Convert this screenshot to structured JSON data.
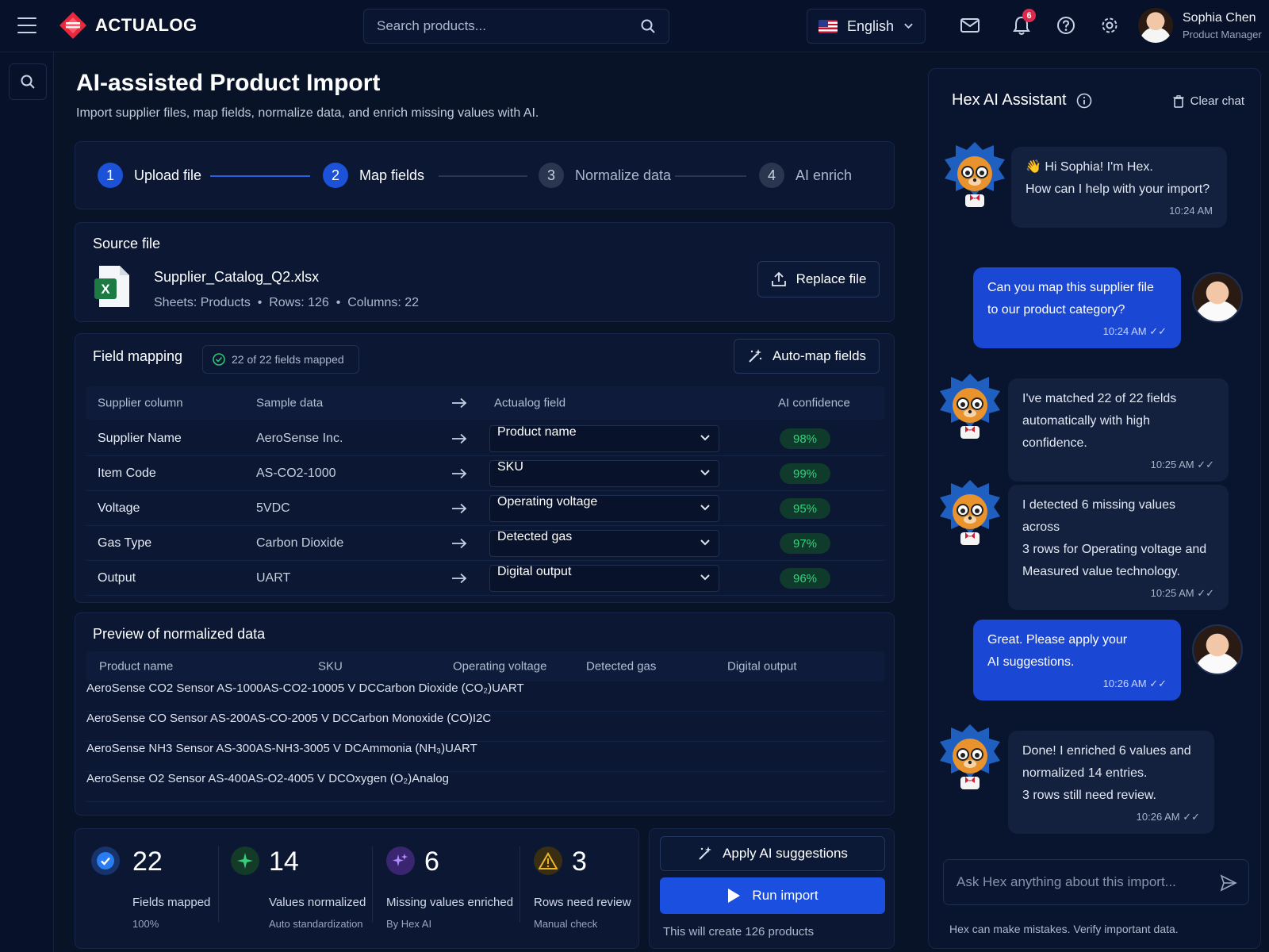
{
  "brand": {
    "name": "ACTUALOG"
  },
  "search": {
    "placeholder": "Search products..."
  },
  "language": {
    "label": "English"
  },
  "notifications": {
    "count": "6"
  },
  "user": {
    "name": "Sophia Chen",
    "role": "Product Manager"
  },
  "page": {
    "title": "AI-assisted Product Import",
    "subtitle": "Import supplier files, map fields, normalize data, and enrich missing values with AI."
  },
  "steps": [
    {
      "num": "1",
      "label": "Upload file",
      "state": "done"
    },
    {
      "num": "2",
      "label": "Map fields",
      "state": "active"
    },
    {
      "num": "3",
      "label": "Normalize data",
      "state": "idle"
    },
    {
      "num": "4",
      "label": "AI enrich",
      "state": "idle"
    }
  ],
  "source": {
    "title": "Source file",
    "file_name": "Supplier_Catalog_Q2.xlsx",
    "meta": "Sheets: Products  •  Rows: 126  •  Columns: 22",
    "replace_label": "Replace file"
  },
  "mapping": {
    "title": "Field mapping",
    "badge": "22 of 22 fields mapped",
    "automap_label": "Auto-map fields",
    "headers": {
      "supplier": "Supplier column",
      "sample": "Sample data",
      "field": "Actualog field",
      "confidence": "AI confidence"
    },
    "rows": [
      {
        "supplier": "Supplier Name",
        "sample": "AeroSense Inc.",
        "field": "Product name",
        "confidence": "98%"
      },
      {
        "supplier": "Item Code",
        "sample": "AS-CO2-1000",
        "field": "SKU",
        "confidence": "99%"
      },
      {
        "supplier": "Voltage",
        "sample": "5VDC",
        "field": "Operating voltage",
        "confidence": "95%"
      },
      {
        "supplier": "Gas Type",
        "sample": "Carbon Dioxide",
        "field": "Detected gas",
        "confidence": "97%"
      },
      {
        "supplier": "Output",
        "sample": "UART",
        "field": "Digital output",
        "confidence": "96%"
      }
    ]
  },
  "preview": {
    "title": "Preview of normalized data",
    "headers": [
      "Product name",
      "SKU",
      "Operating voltage",
      "Detected gas",
      "Digital output"
    ],
    "rows": [
      [
        "AeroSense CO2 Sensor AS-1000",
        "AS-CO2-1000",
        "5 V DC",
        "Carbon Dioxide (CO₂)",
        "UART"
      ],
      [
        "AeroSense CO Sensor AS-200",
        "AS-CO-200",
        "5 V DC",
        "Carbon Monoxide (CO)",
        "I2C"
      ],
      [
        "AeroSense NH3 Sensor AS-300",
        "AS-NH3-300",
        "5 V DC",
        "Ammonia (NH₃)",
        "UART"
      ],
      [
        "AeroSense O2 Sensor AS-400",
        "AS-O2-400",
        "5 V DC",
        "Oxygen (O₂)",
        "Analog"
      ]
    ]
  },
  "stats": [
    {
      "value": "22",
      "label": "Fields mapped",
      "sub": "100%",
      "color": "#1c6fe0"
    },
    {
      "value": "14",
      "label": "Values normalized",
      "sub": "Auto standardization",
      "color": "#1d6b3c"
    },
    {
      "value": "6",
      "label": "Missing values enriched",
      "sub": "By Hex AI",
      "color": "#6a3fc8"
    },
    {
      "value": "3",
      "label": "Rows need review",
      "sub": "Manual check",
      "color": "#e0a020"
    }
  ],
  "actions": {
    "apply_label": "Apply AI suggestions",
    "run_label": "Run import",
    "note": "This will create 126 products"
  },
  "assistant": {
    "title": "Hex AI Assistant",
    "clear_label": "Clear chat",
    "messages": [
      {
        "from": "ai",
        "lines": [
          "👋 Hi Sophia! I'm Hex.",
          "How can I help with your import?"
        ],
        "time": "10:24 AM"
      },
      {
        "from": "user",
        "lines": [
          "Can you map this supplier file",
          "to our product category?"
        ],
        "time": "10:24 AM ✓✓"
      },
      {
        "from": "ai",
        "lines": [
          "I've matched 22 of 22 fields",
          "automatically with high confidence."
        ],
        "time": "10:25 AM ✓✓"
      },
      {
        "from": "ai",
        "lines": [
          "I detected 6 missing values across",
          "3 rows for Operating voltage and",
          "Measured value technology."
        ],
        "time": "10:25 AM ✓✓"
      },
      {
        "from": "user",
        "lines": [
          "Great. Please apply your",
          "AI suggestions."
        ],
        "time": "10:26 AM ✓✓"
      },
      {
        "from": "ai",
        "lines": [
          "Done! I enriched 6 values and",
          "normalized 14 entries.",
          "3 rows still need review."
        ],
        "time": "10:26 AM ✓✓"
      }
    ],
    "input_placeholder": "Ask Hex anything about this import...",
    "disclaimer": "Hex can make mistakes. Verify important data."
  }
}
